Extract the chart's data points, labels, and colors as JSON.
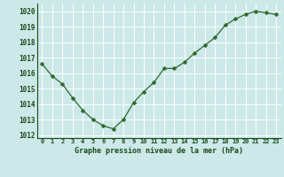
{
  "x": [
    0,
    1,
    2,
    3,
    4,
    5,
    6,
    7,
    8,
    9,
    10,
    11,
    12,
    13,
    14,
    15,
    16,
    17,
    18,
    19,
    20,
    21,
    22,
    23
  ],
  "y": [
    1016.6,
    1015.8,
    1015.3,
    1014.4,
    1013.6,
    1013.0,
    1012.6,
    1012.4,
    1013.0,
    1014.1,
    1014.8,
    1015.4,
    1016.3,
    1016.3,
    1016.7,
    1017.3,
    1017.8,
    1018.3,
    1019.1,
    1019.5,
    1019.8,
    1020.0,
    1019.9,
    1019.8
  ],
  "line_color": "#2d6a2d",
  "marker": "D",
  "marker_size": 2.5,
  "bg_color": "#cce8e8",
  "grid_color": "#ffffff",
  "xlabel": "Graphe pression niveau de la mer (hPa)",
  "xlabel_color": "#1a4a1a",
  "tick_color": "#1a4a1a",
  "ylim": [
    1011.8,
    1020.5
  ],
  "yticks": [
    1012,
    1013,
    1014,
    1015,
    1016,
    1017,
    1018,
    1019,
    1020
  ],
  "xlim": [
    -0.5,
    23.5
  ],
  "xticks": [
    0,
    1,
    2,
    3,
    4,
    5,
    6,
    7,
    8,
    9,
    10,
    11,
    12,
    13,
    14,
    15,
    16,
    17,
    18,
    19,
    20,
    21,
    22,
    23
  ],
  "xtick_labels": [
    "0",
    "1",
    "2",
    "3",
    "4",
    "5",
    "6",
    "7",
    "8",
    "9",
    "10",
    "11",
    "12",
    "13",
    "14",
    "15",
    "16",
    "17",
    "18",
    "19",
    "20",
    "21",
    "22",
    "23"
  ],
  "ytick_labels": [
    "1012",
    "1013",
    "1014",
    "1015",
    "1016",
    "1017",
    "1018",
    "1019",
    "1020"
  ]
}
